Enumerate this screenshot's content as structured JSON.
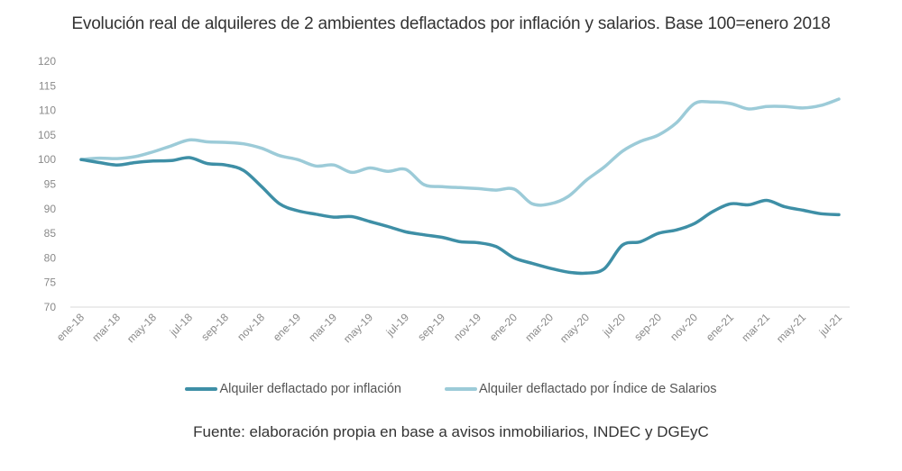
{
  "chart_data": {
    "type": "line",
    "title": "Evolución real de alquileres de 2 ambientes deflactados por inflación y salarios. Base 100=enero 2018",
    "xlabel": "",
    "ylabel": "",
    "ylim": [
      70,
      120
    ],
    "yticks": [
      "120",
      "115",
      "110",
      "105",
      "100",
      "95",
      "90",
      "85",
      "80",
      "75",
      "70"
    ],
    "ytick_values": [
      120,
      115,
      110,
      105,
      100,
      95,
      90,
      85,
      80,
      75,
      70
    ],
    "grid": false,
    "legend_position": "bottom",
    "x": [
      "ene-18",
      "feb-18",
      "mar-18",
      "abr-18",
      "may-18",
      "jun-18",
      "jul-18",
      "ago-18",
      "sep-18",
      "oct-18",
      "nov-18",
      "dic-18",
      "ene-19",
      "feb-19",
      "mar-19",
      "abr-19",
      "may-19",
      "jun-19",
      "jul-19",
      "ago-19",
      "sep-19",
      "oct-19",
      "nov-19",
      "dic-19",
      "ene-20",
      "feb-20",
      "mar-20",
      "abr-20",
      "may-20",
      "jun-20",
      "jul-20",
      "ago-20",
      "sep-20",
      "oct-20",
      "nov-20",
      "dic-20",
      "ene-21",
      "feb-21",
      "mar-21",
      "abr-21",
      "may-21",
      "jun-21",
      "jul-21"
    ],
    "xtick_labels": [
      "ene-18",
      "mar-18",
      "may-18",
      "jul-18",
      "sep-18",
      "nov-18",
      "ene-19",
      "mar-19",
      "may-19",
      "jul-19",
      "sep-19",
      "nov-19",
      "ene-20",
      "mar-20",
      "may-20",
      "jul-20",
      "sep-20",
      "nov-20",
      "ene-21",
      "mar-21",
      "may-21",
      "jul-21"
    ],
    "series": [
      {
        "name": "Alquiler deflactado por inflación",
        "color": "#3e8fa6",
        "values": [
          100.0,
          99.4,
          98.9,
          99.4,
          99.7,
          99.8,
          100.4,
          99.2,
          98.9,
          97.8,
          94.5,
          91.0,
          89.6,
          88.9,
          88.3,
          88.4,
          87.4,
          86.4,
          85.3,
          84.7,
          84.2,
          83.3,
          83.1,
          82.3,
          80.0,
          78.9,
          77.9,
          77.1,
          76.9,
          77.8,
          82.6,
          83.3,
          85.0,
          85.7,
          87.0,
          89.4,
          91.0,
          90.8,
          91.7,
          90.4,
          89.7,
          89.0,
          88.8
        ]
      },
      {
        "name": "Alquiler deflactado por Índice de Salarios",
        "color": "#9ccbd8",
        "values": [
          100.0,
          100.3,
          100.2,
          100.6,
          101.6,
          102.8,
          104.0,
          103.6,
          103.5,
          103.2,
          102.3,
          100.8,
          100.0,
          98.7,
          98.9,
          97.4,
          98.3,
          97.6,
          98.0,
          94.9,
          94.5,
          94.3,
          94.1,
          93.8,
          94.0,
          91.0,
          91.0,
          92.5,
          95.8,
          98.5,
          101.7,
          103.7,
          105.0,
          107.5,
          111.4,
          111.7,
          111.4,
          110.3,
          110.8,
          110.8,
          110.5,
          111.0,
          112.3
        ]
      }
    ],
    "source": "Fuente: elaboración propia en base a avisos inmobiliarios, INDEC y DGEyC"
  }
}
